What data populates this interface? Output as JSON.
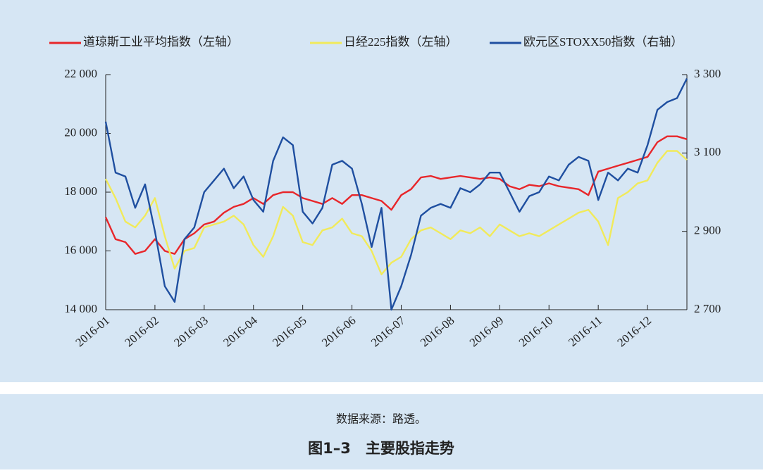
{
  "chart_data": {
    "type": "line",
    "legend": "top",
    "xticks": [
      "2016-01",
      "2016-02",
      "2016-03",
      "2016-04",
      "2016-05",
      "2016-06",
      "2016-07",
      "2016-08",
      "2016-09",
      "2016-10",
      "2016-11",
      "2016-12"
    ],
    "ylim": [
      14000,
      22000
    ],
    "yticks": [
      {
        "value": 14000,
        "label": "14 000"
      },
      {
        "value": 16000,
        "label": "16 000"
      },
      {
        "value": 18000,
        "label": "18 000"
      },
      {
        "value": 20000,
        "label": "20 000"
      },
      {
        "value": 22000,
        "label": "22 000"
      }
    ],
    "y2lim": [
      2700,
      3300
    ],
    "y2ticks": [
      {
        "value": 2700,
        "label": "2 700"
      },
      {
        "value": 2900,
        "label": "2 900"
      },
      {
        "value": 3100,
        "label": "3 100"
      },
      {
        "value": 3300,
        "label": "3 300"
      }
    ],
    "series": [
      {
        "name": "道琼斯工业平均指数（左轴）",
        "color": "#e8262a",
        "values": [
          17150,
          16400,
          16300,
          15900,
          16000,
          16400,
          16000,
          15900,
          16400,
          16600,
          16900,
          17000,
          17300,
          17500,
          17600,
          17800,
          17600,
          17900,
          18000,
          18000,
          17800,
          17700,
          17600,
          17800,
          17600,
          17900,
          17900,
          17800,
          17700,
          17400,
          17900,
          18100,
          18500,
          18550,
          18450,
          18500,
          18550,
          18500,
          18450,
          18500,
          18450,
          18200,
          18100,
          18250,
          18200,
          18300,
          18200,
          18150,
          18100,
          17900,
          18700,
          18800,
          18900,
          19000,
          19100,
          19200,
          19700,
          19900,
          19900,
          19800
        ]
      },
      {
        "name": "日经225指数（左轴）",
        "color": "#f1ea5a",
        "values": [
          18450,
          17800,
          17000,
          16800,
          17200,
          17800,
          16500,
          15400,
          16000,
          16100,
          16800,
          16900,
          17000,
          17200,
          16900,
          16200,
          15800,
          16500,
          17500,
          17200,
          16300,
          16200,
          16700,
          16800,
          17100,
          16600,
          16500,
          16000,
          15200,
          15600,
          15800,
          16400,
          16700,
          16800,
          16600,
          16400,
          16700,
          16600,
          16800,
          16500,
          16900,
          16700,
          16500,
          16600,
          16500,
          16700,
          16900,
          17100,
          17300,
          17400,
          17000,
          16200,
          17800,
          18000,
          18300,
          18400,
          19000,
          19400,
          19400,
          19100
        ]
      },
      {
        "name": "欧元区STOXX50指数（右轴）",
        "color": "#1f4fa0",
        "axis": "y2",
        "values": [
          3180,
          3050,
          3040,
          2960,
          3020,
          2900,
          2760,
          2720,
          2880,
          2910,
          3000,
          3030,
          3060,
          3010,
          3040,
          2980,
          2950,
          3080,
          3140,
          3120,
          2950,
          2920,
          2960,
          3070,
          3080,
          3060,
          2970,
          2860,
          2960,
          2700,
          2760,
          2840,
          2940,
          2960,
          2970,
          2960,
          3010,
          3000,
          3020,
          3050,
          3050,
          3000,
          2950,
          2990,
          3000,
          3040,
          3030,
          3070,
          3090,
          3080,
          2980,
          3050,
          3030,
          3060,
          3050,
          3120,
          3210,
          3230,
          3240,
          3290
        ]
      }
    ],
    "source": "数据来源：路透。",
    "caption": "图1–3　主要股指走势"
  }
}
